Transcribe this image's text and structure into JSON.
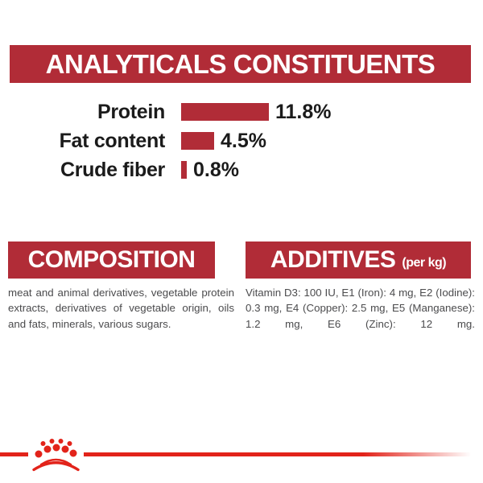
{
  "header": {
    "title": "ANALYTICALS CONSTITUENTS"
  },
  "chart_data": {
    "type": "bar",
    "orientation": "horizontal",
    "title": "ANALYTICALS CONSTITUENTS",
    "categories": [
      "Protein",
      "Fat content",
      "Crude fiber"
    ],
    "values": [
      11.8,
      4.5,
      0.8
    ],
    "value_labels": [
      "11.8%",
      "4.5%",
      "0.8%"
    ],
    "unit": "%",
    "bar_color": "#b12c37",
    "axis": "none",
    "grid": false,
    "legend": false
  },
  "composition": {
    "title": "COMPOSITION",
    "body": "meat and animal derivatives, vegetable protein extracts, derivatives of vegetable origin, oils and fats, minerals, various sugars."
  },
  "additives": {
    "title": "ADDITIVES",
    "subtitle": "(per kg)",
    "body": "Vitamin D3: 100 IU, E1 (Iron): 4 mg, E2 (Iodine): 0.3 mg, E4 (Copper): 2.5 mg, E5 (Manganese): 1.2 mg, E6 (Zinc): 12 mg."
  },
  "footer": {
    "logo": "royal-canin-crown-logo"
  },
  "colors": {
    "banner_red": "#b12c37",
    "accent_red": "#e2231a",
    "chart_text": "#1b1b1b",
    "body_text": "#4b4b4d",
    "banner_text": "#ffffff"
  }
}
